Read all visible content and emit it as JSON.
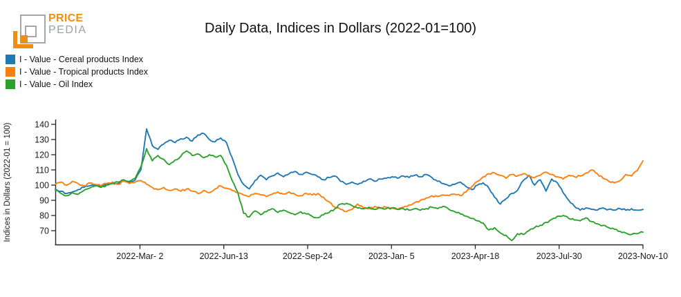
{
  "branding": {
    "logo_text_primary": "PRICE",
    "logo_text_secondary": "PEDIA",
    "accent_color": "#ef8f10",
    "secondary_color": "#9aa0a6"
  },
  "title": "Daily Data, Indices in Dollars (2022-01=100)",
  "legend": [
    {
      "label": "I - Value - Cereal products Index",
      "color": "#1f77b4"
    },
    {
      "label": "I - Value - Tropical products Index",
      "color": "#ff7f0e"
    },
    {
      "label": "I - Value - Oil Index",
      "color": "#2ca02c"
    }
  ],
  "chart_data": {
    "type": "line",
    "title": "Daily Data, Indices in Dollars (2022-01=100)",
    "xlabel": "",
    "ylabel": "Indices in Dollars (2022-01 = 100)",
    "grid": false,
    "legend_position": "top-left",
    "y_ticks": [
      70,
      80,
      90,
      100,
      110,
      120,
      130,
      140
    ],
    "ylim": [
      61,
      143
    ],
    "x_tick_labels": [
      "2022-Mar- 2",
      "2022-Jun-13",
      "2022-Sep-24",
      "2023-Jan- 5",
      "2023-Apr-18",
      "2023-Jul-30",
      "2023-Nov-10"
    ],
    "x_tick_days": [
      104,
      207,
      310,
      413,
      516,
      619,
      722
    ],
    "x_range_days": [
      0,
      722
    ],
    "x_sample_note": "values sampled weekly from chart, day 0 = left edge (~2021-Nov-18), day 722 = 2023-Nov-10",
    "series": [
      {
        "name": "I - Value - Cereal products Index",
        "color": "#1f77b4",
        "values": [
          97.5,
          96,
          94.5,
          95.5,
          97,
          98.5,
          99.5,
          100,
          99,
          100.5,
          101.5,
          101,
          102.5,
          102,
          103.5,
          110,
          137,
          126,
          123.5,
          127,
          129.5,
          128,
          130.5,
          131.5,
          129,
          133,
          134,
          130,
          128.5,
          131,
          128,
          118,
          107,
          100.5,
          97.5,
          103,
          106.5,
          103.5,
          106,
          108,
          105.5,
          107.5,
          109,
          107,
          108.5,
          107,
          105.5,
          103.5,
          105,
          106,
          102.5,
          100.5,
          102,
          100.5,
          102.5,
          104,
          102.5,
          104,
          104.5,
          105.5,
          104.5,
          106,
          105,
          106.5,
          105.5,
          107,
          105,
          102.5,
          101,
          99.5,
          100.5,
          102,
          99,
          97,
          100,
          101.5,
          98,
          92,
          87.5,
          91,
          94.5,
          96.5,
          103,
          106.5,
          100,
          103.5,
          96,
          104,
          101.5,
          95,
          90,
          86,
          83.5,
          85,
          84,
          83.5,
          85,
          84,
          83.5,
          84.5,
          83.5,
          84.5,
          83.5,
          84
        ]
      },
      {
        "name": "I - Value - Tropical products Index",
        "color": "#ff7f0e",
        "values": [
          100.5,
          102,
          100,
          102.5,
          101,
          99.5,
          101.5,
          100.5,
          99.5,
          101,
          102,
          100.5,
          102.5,
          101,
          102,
          103,
          100.5,
          98.5,
          97,
          98.5,
          96.5,
          97.5,
          96,
          97.5,
          96,
          94.5,
          96.5,
          95,
          97.5,
          99.5,
          98,
          96.5,
          95,
          93.5,
          92.5,
          94.5,
          93.5,
          92.5,
          94,
          95.5,
          94,
          95.5,
          94,
          93,
          94.5,
          93.5,
          94.5,
          92,
          89,
          85.5,
          84,
          82.5,
          84,
          87.5,
          85,
          84.5,
          86,
          85,
          85.5,
          85,
          84,
          85.5,
          87,
          88.5,
          90,
          91.5,
          93,
          92.5,
          93.5,
          93,
          94,
          93,
          95.5,
          99,
          102.5,
          105.5,
          107.5,
          108,
          106.5,
          104.5,
          107,
          106,
          107.5,
          106,
          105,
          106.5,
          108.5,
          107,
          105.5,
          104,
          106.5,
          105.5,
          106,
          108,
          110,
          107.5,
          104.5,
          102.5,
          101.5,
          103,
          107,
          106,
          109.5,
          116
        ]
      },
      {
        "name": "I - Value - Oil Index",
        "color": "#2ca02c",
        "values": [
          96.5,
          94.5,
          93,
          95,
          94,
          96.5,
          98,
          99.5,
          98.5,
          100,
          101,
          102,
          103.5,
          102.5,
          104.5,
          112,
          124,
          116,
          119.5,
          117,
          113.5,
          116.5,
          119,
          122.5,
          119.5,
          120.5,
          118,
          120,
          118.5,
          119.5,
          113,
          103,
          95,
          81.5,
          79,
          83,
          80.5,
          82.5,
          84.5,
          82,
          83.5,
          82,
          80.5,
          82.5,
          81,
          79.5,
          78.5,
          80.5,
          82,
          84.5,
          87.5,
          88,
          86.5,
          85,
          84.5,
          85.5,
          84,
          85,
          84.5,
          85,
          84,
          84.5,
          83.5,
          84.5,
          83.5,
          84.5,
          85.5,
          84.5,
          86,
          84,
          82.5,
          81,
          79.5,
          78,
          76.5,
          75,
          70.5,
          72,
          68.5,
          67,
          63.5,
          68,
          67.5,
          70,
          72,
          73.5,
          75.5,
          77.5,
          79.5,
          80,
          78,
          77,
          76.5,
          78.5,
          76,
          74.5,
          73.5,
          72,
          71,
          69.5,
          68.5,
          67.5,
          68,
          69
        ]
      }
    ]
  }
}
